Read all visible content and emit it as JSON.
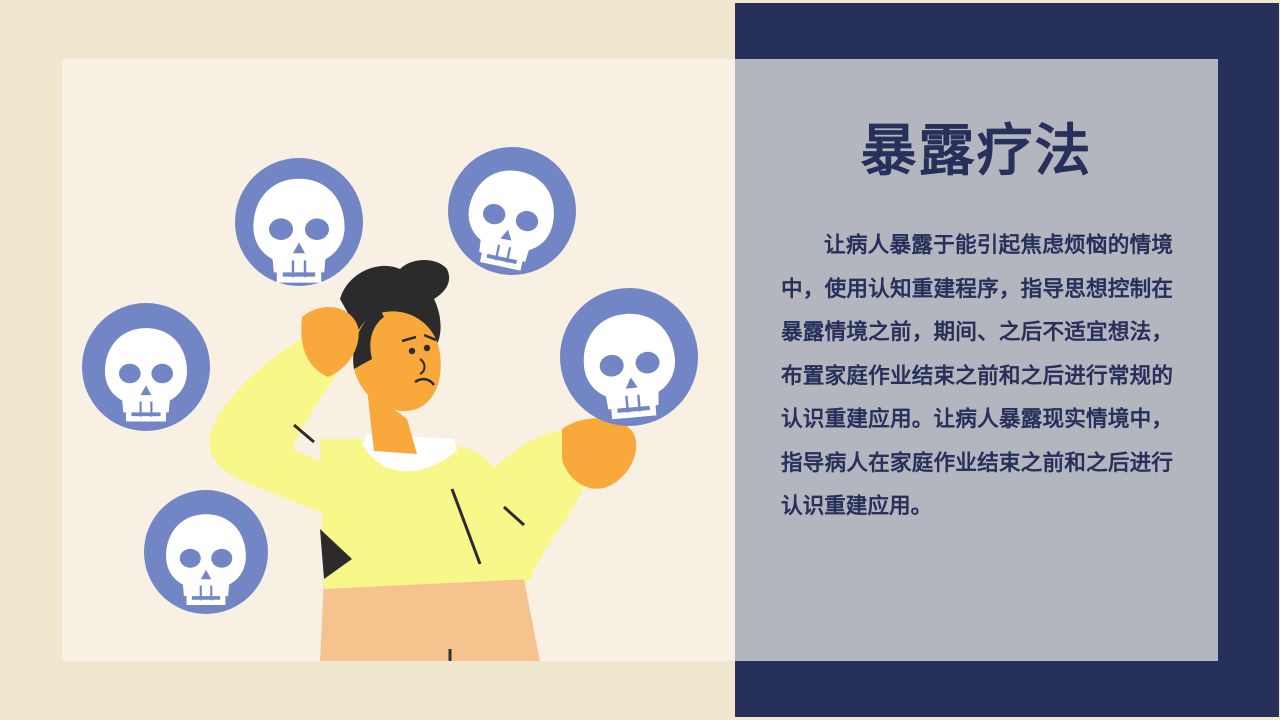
{
  "slide": {
    "title": "暴露疗法",
    "body": "让病人暴露于能引起焦虑烦恼的情境中，使用认知重建程序，指导思想控制在暴露情境之前，期间、之后不适宜想法，布置家庭作业结束之前和之后进行常规的认识重建应用。让病人暴露现实情境中，指导病人在家庭作业结束之前和之后进行认识重建应用。"
  },
  "illustration": {
    "icons": [
      "skull-icon",
      "skull-icon",
      "skull-icon",
      "skull-icon",
      "skull-icon"
    ]
  },
  "colors": {
    "navy": "#26305a",
    "cream_bg": "#f1e7cf",
    "panel_bg": "#f8f1e3",
    "gray_panel": "#b3b6bf",
    "badge": "#7285c4",
    "shirt": "#f7f78a",
    "skin": "#f9a83c",
    "pants": "#f6c38f"
  }
}
